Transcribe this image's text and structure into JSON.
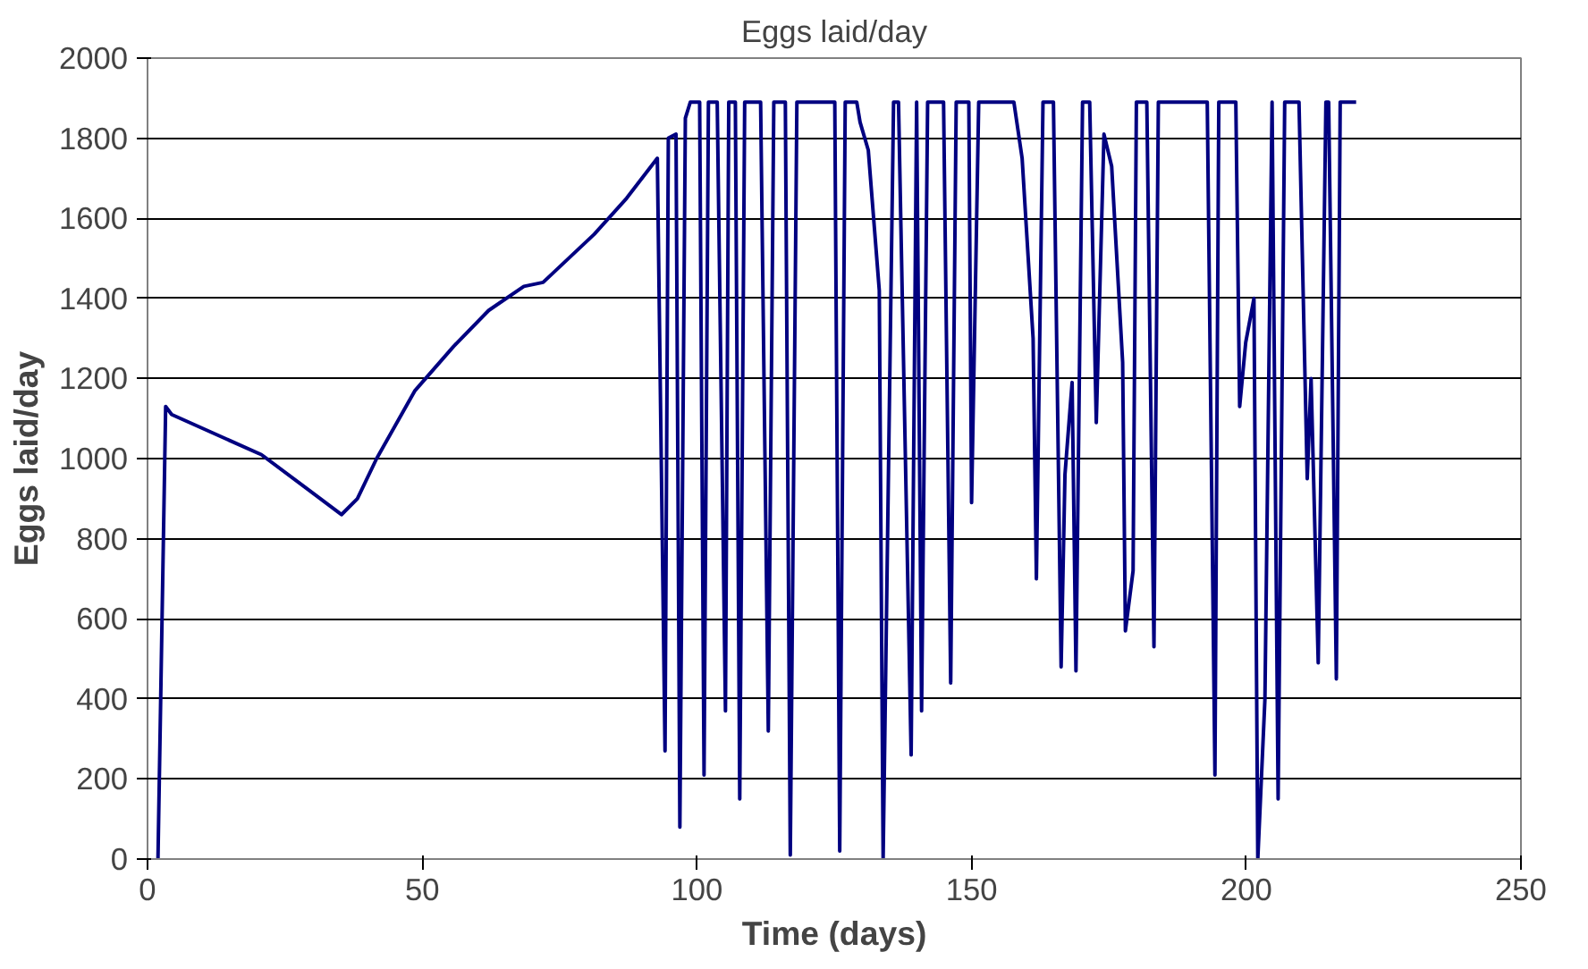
{
  "chart_data": {
    "type": "line",
    "title": "Eggs laid/day",
    "xlabel": "Time (days)",
    "ylabel": "Eggs laid/day",
    "xlim": [
      0,
      250
    ],
    "xticks": [
      0,
      50,
      100,
      150,
      200,
      250
    ],
    "ylim": [
      0,
      2000
    ],
    "yticks": [
      0,
      200,
      400,
      600,
      800,
      1000,
      1200,
      1400,
      1600,
      1800,
      2000
    ],
    "grid": "y",
    "marker": "none",
    "line_style": "solid",
    "series": [
      {
        "color": "#000080",
        "x": [
          1.9,
          3.3,
          4.4,
          20.7,
          29.5,
          35.3,
          38.2,
          41.7,
          48.7,
          55.7,
          62.1,
          68.5,
          72.0,
          81.3,
          87.2,
          92.8,
          94.2,
          94.8,
          96.2,
          96.9,
          97.9,
          98.8,
          100.5,
          101.3,
          102.1,
          103.7,
          105.2,
          105.8,
          107.0,
          107.8,
          108.7,
          111.6,
          113.0,
          114.0,
          116.1,
          117.0,
          118.2,
          125.1,
          126.0,
          127.0,
          129.1,
          129.7,
          131.2,
          133.2,
          133.9,
          135.8,
          136.7,
          139.0,
          140.0,
          140.9,
          142.0,
          144.9,
          146.2,
          147.2,
          149.5,
          150.0,
          151.3,
          157.7,
          159.2,
          161.2,
          161.8,
          163.0,
          164.9,
          166.3,
          167.0,
          168.3,
          169.0,
          170.2,
          171.5,
          172.7,
          174.1,
          175.5,
          177.5,
          178.0,
          179.4,
          180.0,
          181.9,
          183.2,
          184.0,
          192.9,
          194.3,
          195.0,
          198.1,
          198.8,
          199.9,
          201.4,
          202.1,
          203.4,
          204.7,
          205.8,
          207.0,
          209.6,
          211.1,
          211.8,
          213.1,
          214.5,
          215.0,
          216.4,
          217.1,
          220.0
        ],
        "values": [
          0,
          1130,
          1110,
          1010,
          920,
          860,
          900,
          1000,
          1170,
          1280,
          1370,
          1430,
          1440,
          1560,
          1650,
          1750,
          270,
          1800,
          1810,
          80,
          1850,
          1890,
          1890,
          210,
          1890,
          1890,
          370,
          1890,
          1890,
          150,
          1890,
          1890,
          320,
          1890,
          1890,
          10,
          1890,
          1890,
          20,
          1890,
          1890,
          1840,
          1770,
          1420,
          0,
          1890,
          1890,
          260,
          1890,
          370,
          1890,
          1890,
          440,
          1890,
          1890,
          890,
          1890,
          1890,
          1750,
          1300,
          700,
          1890,
          1890,
          480,
          960,
          1190,
          470,
          1890,
          1890,
          1090,
          1810,
          1730,
          1240,
          570,
          720,
          1890,
          1890,
          530,
          1890,
          1890,
          210,
          1890,
          1890,
          1130,
          1290,
          1400,
          0,
          400,
          1890,
          150,
          1890,
          1890,
          950,
          1200,
          490,
          1890,
          1890,
          450,
          1890,
          1890
        ]
      }
    ]
  }
}
